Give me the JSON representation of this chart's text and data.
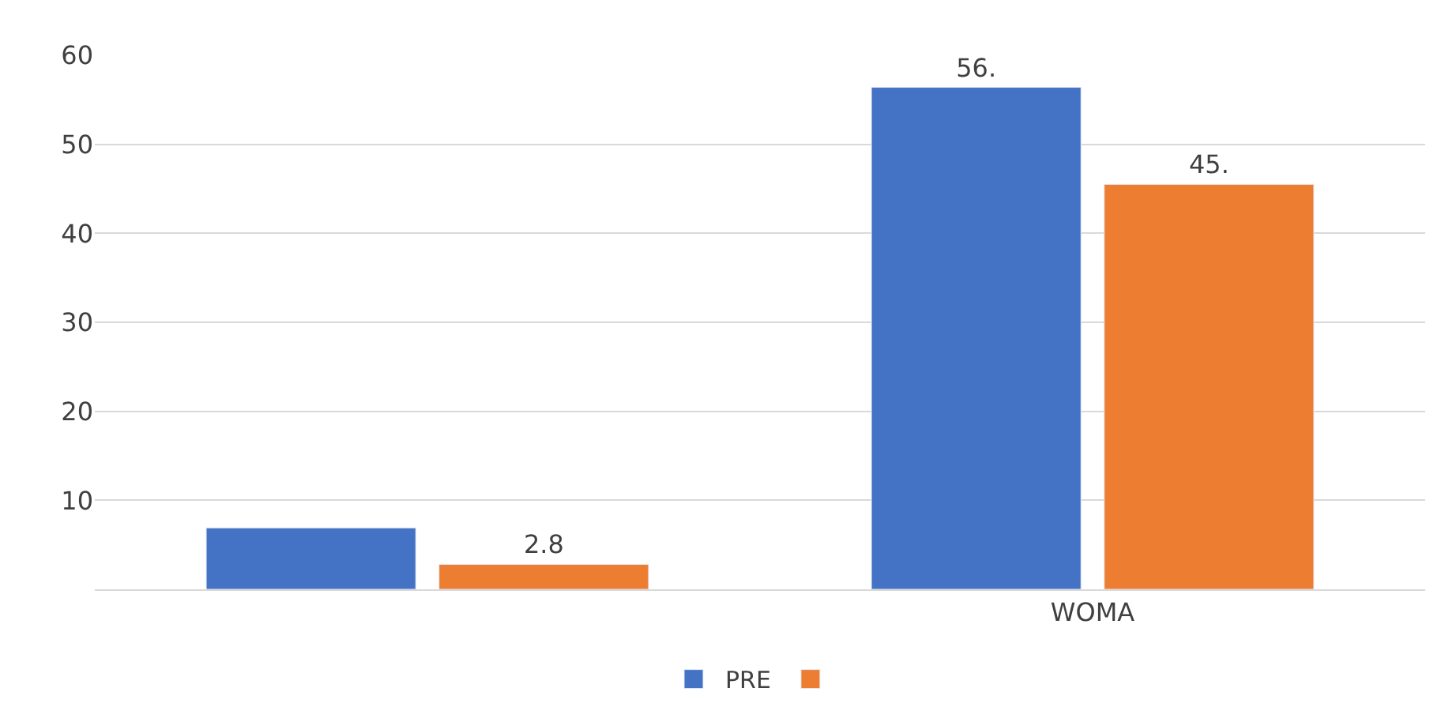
{
  "chart_data": {
    "type": "bar",
    "categories": [
      null,
      "WOMA"
    ],
    "series": [
      {
        "name": "PRE",
        "color": "#4472c4",
        "values": [
          6.9,
          56.4
        ],
        "value_labels": [
          null,
          "56."
        ]
      },
      {
        "color": "#ed7d31",
        "values": [
          2.8,
          45.5
        ],
        "value_labels": [
          "2.8",
          "45."
        ]
      }
    ],
    "ylim": [
      0,
      60
    ],
    "yticks": [
      {
        "value": 0,
        "label": null
      },
      10,
      20,
      30,
      40,
      50,
      60
    ],
    "grid": "y",
    "legend": "bottom"
  }
}
